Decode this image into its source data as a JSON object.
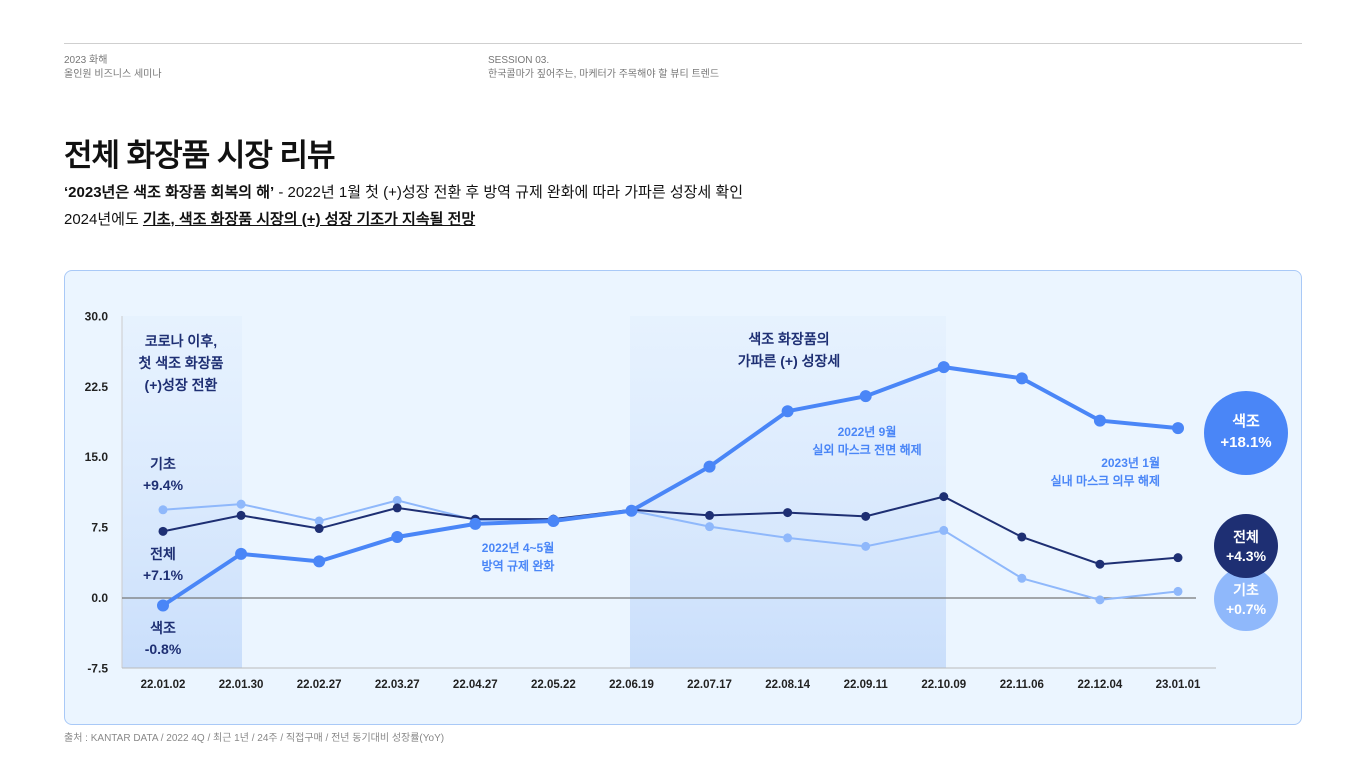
{
  "header": {
    "left_line1": "2023 화해",
    "left_line2": "올인원 비즈니스 세미나",
    "right_line1": "SESSION 03.",
    "right_line2": "한국콜마가 짚어주는, 마케터가 주목해야 할 뷰티 트렌드"
  },
  "title": "전체 화장품 시장 리뷰",
  "subtitle1_bold": "‘2023년은 색조 화장품 회복의 해’",
  "subtitle1_rest": " - 2022년 1월 첫 (+)성장 전환 후 방역 규제 완화에 따라 가파른 성장세 확인",
  "subtitle2_pre": "2024년에도 ",
  "subtitle2_underline": "기초, 색조 화장품 시장의 (+) 성장 기조가 지속될 전망",
  "source": "출처 : KANTAR DATA / 2022 4Q / 최근 1년 / 24주 / 직접구매 / 전년 동기대비 성장률(YoY)",
  "chart_data": {
    "type": "line",
    "x": [
      "22.01.02",
      "22.01.30",
      "22.02.27",
      "22.03.27",
      "22.04.27",
      "22.05.22",
      "22.06.19",
      "22.07.17",
      "22.08.14",
      "22.09.11",
      "22.10.09",
      "22.11.06",
      "22.12.04",
      "23.01.01"
    ],
    "ylim": [
      -7.5,
      30
    ],
    "yticks": [
      "30.0",
      "22.5",
      "15.0",
      "7.5",
      "0.0",
      "-7.5"
    ],
    "series": [
      {
        "name": "기초",
        "color": "#8fb8fb",
        "values": [
          9.4,
          10.0,
          8.2,
          10.4,
          8.3,
          8.4,
          9.3,
          7.6,
          6.4,
          5.5,
          7.2,
          2.1,
          -0.2,
          0.7
        ]
      },
      {
        "name": "전체",
        "color": "#1e2f73",
        "values": [
          7.1,
          8.8,
          7.4,
          9.6,
          8.4,
          8.4,
          9.4,
          8.8,
          9.1,
          8.7,
          10.8,
          6.5,
          3.6,
          4.3
        ]
      },
      {
        "name": "색조",
        "color": "#4a86f7",
        "values": [
          -0.8,
          4.7,
          3.9,
          6.5,
          7.9,
          8.2,
          9.3,
          14.0,
          19.9,
          21.5,
          24.6,
          23.4,
          18.9,
          18.1
        ]
      }
    ],
    "start_labels": {
      "gicho": [
        "기초",
        "+9.4%"
      ],
      "jeonche": [
        "전체",
        "+7.1%"
      ],
      "saekjo": [
        "색조",
        "-0.8%"
      ]
    },
    "end_labels": {
      "saekjo": [
        "색조",
        "+18.1%"
      ],
      "jeonche": [
        "전체",
        "+4.3%"
      ],
      "gicho": [
        "기초",
        "+0.7%"
      ]
    },
    "annotations": {
      "band1": [
        "코로나 이후,",
        "첫 색조 화장품",
        "(+)성장 전환"
      ],
      "band2": [
        "색조 화장품의",
        "가파른 (+) 성장세"
      ],
      "note1": [
        "2022년 4~5월",
        "방역 규제 완화"
      ],
      "note2": [
        "2022년 9월",
        "실외 마스크 전면 해제"
      ],
      "note3": [
        "2023년 1월",
        "실내 마스크 의무 해제"
      ]
    }
  }
}
